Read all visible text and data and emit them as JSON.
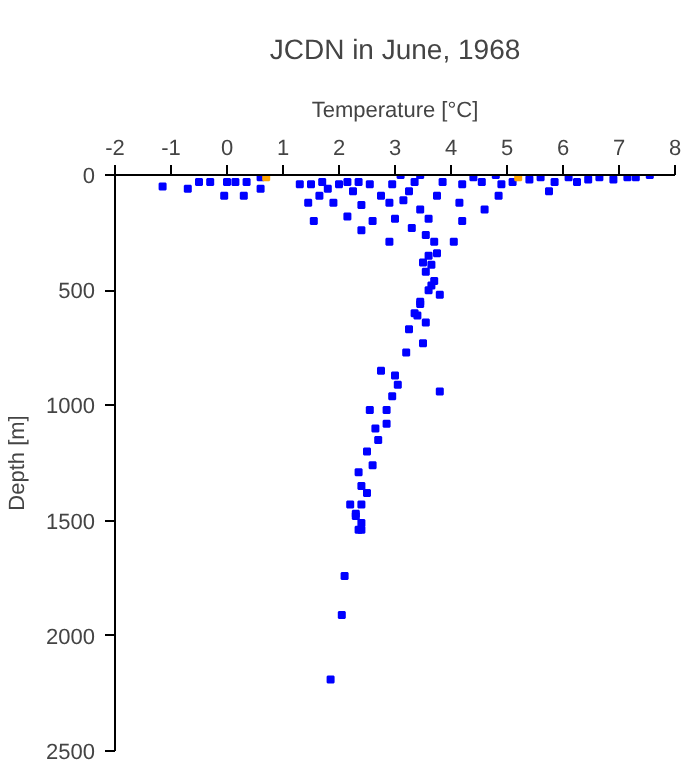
{
  "chart_data": {
    "type": "scatter",
    "title": "JCDN in June, 1968",
    "xlabel": "Temperature [°C]",
    "ylabel": "Depth [m]",
    "xlim": [
      -2,
      8
    ],
    "xticks": [
      -2,
      -1,
      0,
      1,
      2,
      3,
      4,
      5,
      6,
      7,
      8
    ],
    "ylim": [
      2500,
      0
    ],
    "yticks": [
      0,
      500,
      1000,
      1500,
      2000,
      2500
    ],
    "grid": false,
    "marker": "square",
    "series": [
      {
        "color": "#0000ff",
        "x": [
          -1.15,
          -0.7,
          -0.5,
          -0.3,
          0.0,
          -0.05,
          0.15,
          0.3,
          0.35,
          0.6,
          0.6,
          1.3,
          1.45,
          1.5,
          1.65,
          1.7,
          1.55,
          1.8,
          2.0,
          1.9,
          2.15,
          2.15,
          2.25,
          2.35,
          2.4,
          2.55,
          2.6,
          2.4,
          2.75,
          2.9,
          2.9,
          2.95,
          3.0,
          3.1,
          3.15,
          3.25,
          3.3,
          3.35,
          3.45,
          3.45,
          3.6,
          3.55,
          3.7,
          3.75,
          3.75,
          3.65,
          3.7,
          3.6,
          3.8,
          3.45,
          3.4,
          3.55,
          3.85,
          4.05,
          4.15,
          4.2,
          4.2,
          4.4,
          4.55,
          4.6,
          4.8,
          4.85,
          4.9,
          5.1,
          5.4,
          5.6,
          5.75,
          5.85,
          6.1,
          6.25,
          6.45,
          6.65,
          6.9,
          7.15,
          7.3,
          7.55,
          3.6,
          3.55,
          3.65,
          3.5,
          3.45,
          3.35,
          3.25,
          3.5,
          3.2,
          2.75,
          3.0,
          3.05,
          3.8,
          2.95,
          2.85,
          2.55,
          2.85,
          2.65,
          2.7,
          2.5,
          2.6,
          2.35,
          2.4,
          2.5,
          2.4,
          2.3,
          2.4,
          2.35,
          2.2,
          2.3,
          2.4,
          2.1,
          2.05,
          1.85
        ],
        "values": [
          50,
          60,
          30,
          30,
          30,
          90,
          30,
          90,
          30,
          60,
          10,
          40,
          120,
          40,
          90,
          30,
          200,
          60,
          40,
          120,
          30,
          180,
          70,
          30,
          130,
          40,
          200,
          240,
          90,
          120,
          290,
          40,
          190,
          0,
          110,
          70,
          230,
          30,
          0,
          150,
          190,
          260,
          290,
          90,
          340,
          390,
          460,
          500,
          520,
          560,
          610,
          640,
          30,
          290,
          120,
          200,
          40,
          10,
          30,
          150,
          0,
          90,
          40,
          30,
          20,
          10,
          70,
          30,
          10,
          30,
          20,
          10,
          20,
          10,
          10,
          0,
          350,
          420,
          480,
          380,
          550,
          600,
          670,
          730,
          770,
          850,
          870,
          910,
          940,
          960,
          1020,
          1020,
          1080,
          1100,
          1150,
          1200,
          1260,
          1290,
          1350,
          1380,
          1430,
          1470,
          1510,
          1540,
          1430,
          1480,
          1540,
          1740,
          1910,
          2190
        ]
      },
      {
        "color": "#ffa500",
        "x": [
          0.7,
          5.2
        ],
        "values": [
          10,
          10
        ]
      }
    ]
  }
}
